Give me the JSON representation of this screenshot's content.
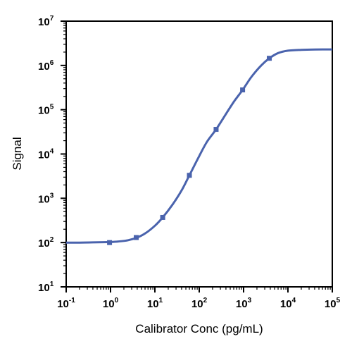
{
  "chart_data": {
    "type": "line",
    "xlabel": "Calibrator Conc (pg/mL)",
    "ylabel": "Signal",
    "x_scale": "log",
    "y_scale": "log",
    "xlim": [
      0.1,
      100000
    ],
    "ylim": [
      10,
      10000000
    ],
    "x_ticks": [
      {
        "base": "10",
        "exp": "-1"
      },
      {
        "base": "10",
        "exp": "0"
      },
      {
        "base": "10",
        "exp": "1"
      },
      {
        "base": "10",
        "exp": "2"
      },
      {
        "base": "10",
        "exp": "3"
      },
      {
        "base": "10",
        "exp": "4"
      },
      {
        "base": "10",
        "exp": "5"
      }
    ],
    "y_ticks": [
      {
        "base": "10",
        "exp": "1"
      },
      {
        "base": "10",
        "exp": "2"
      },
      {
        "base": "10",
        "exp": "3"
      },
      {
        "base": "10",
        "exp": "4"
      },
      {
        "base": "10",
        "exp": "5"
      },
      {
        "base": "10",
        "exp": "6"
      },
      {
        "base": "10",
        "exp": "7"
      }
    ],
    "grid": false,
    "color": "#4a63ad",
    "series": [
      {
        "x": [
          0.95,
          3.8,
          15,
          60,
          240,
          950,
          3800
        ],
        "y": [
          100,
          130,
          370,
          3300,
          36000,
          280000,
          1450000
        ]
      }
    ],
    "fit_curve": {
      "x": [
        0.1,
        0.2,
        0.4,
        0.7,
        1,
        1.5,
        2.5,
        4,
        6,
        10,
        15,
        25,
        40,
        60,
        100,
        150,
        240,
        400,
        600,
        950,
        1500,
        2500,
        3800,
        6000,
        10000,
        20000,
        40000,
        100000
      ],
      "y": [
        100,
        100,
        101,
        102,
        103,
        106,
        113,
        130,
        160,
        240,
        370,
        720,
        1500,
        3300,
        9000,
        19000,
        36000,
        80000,
        150000,
        280000,
        550000,
        1000000,
        1450000,
        1900000,
        2150000,
        2250000,
        2290000,
        2300000
      ]
    }
  }
}
